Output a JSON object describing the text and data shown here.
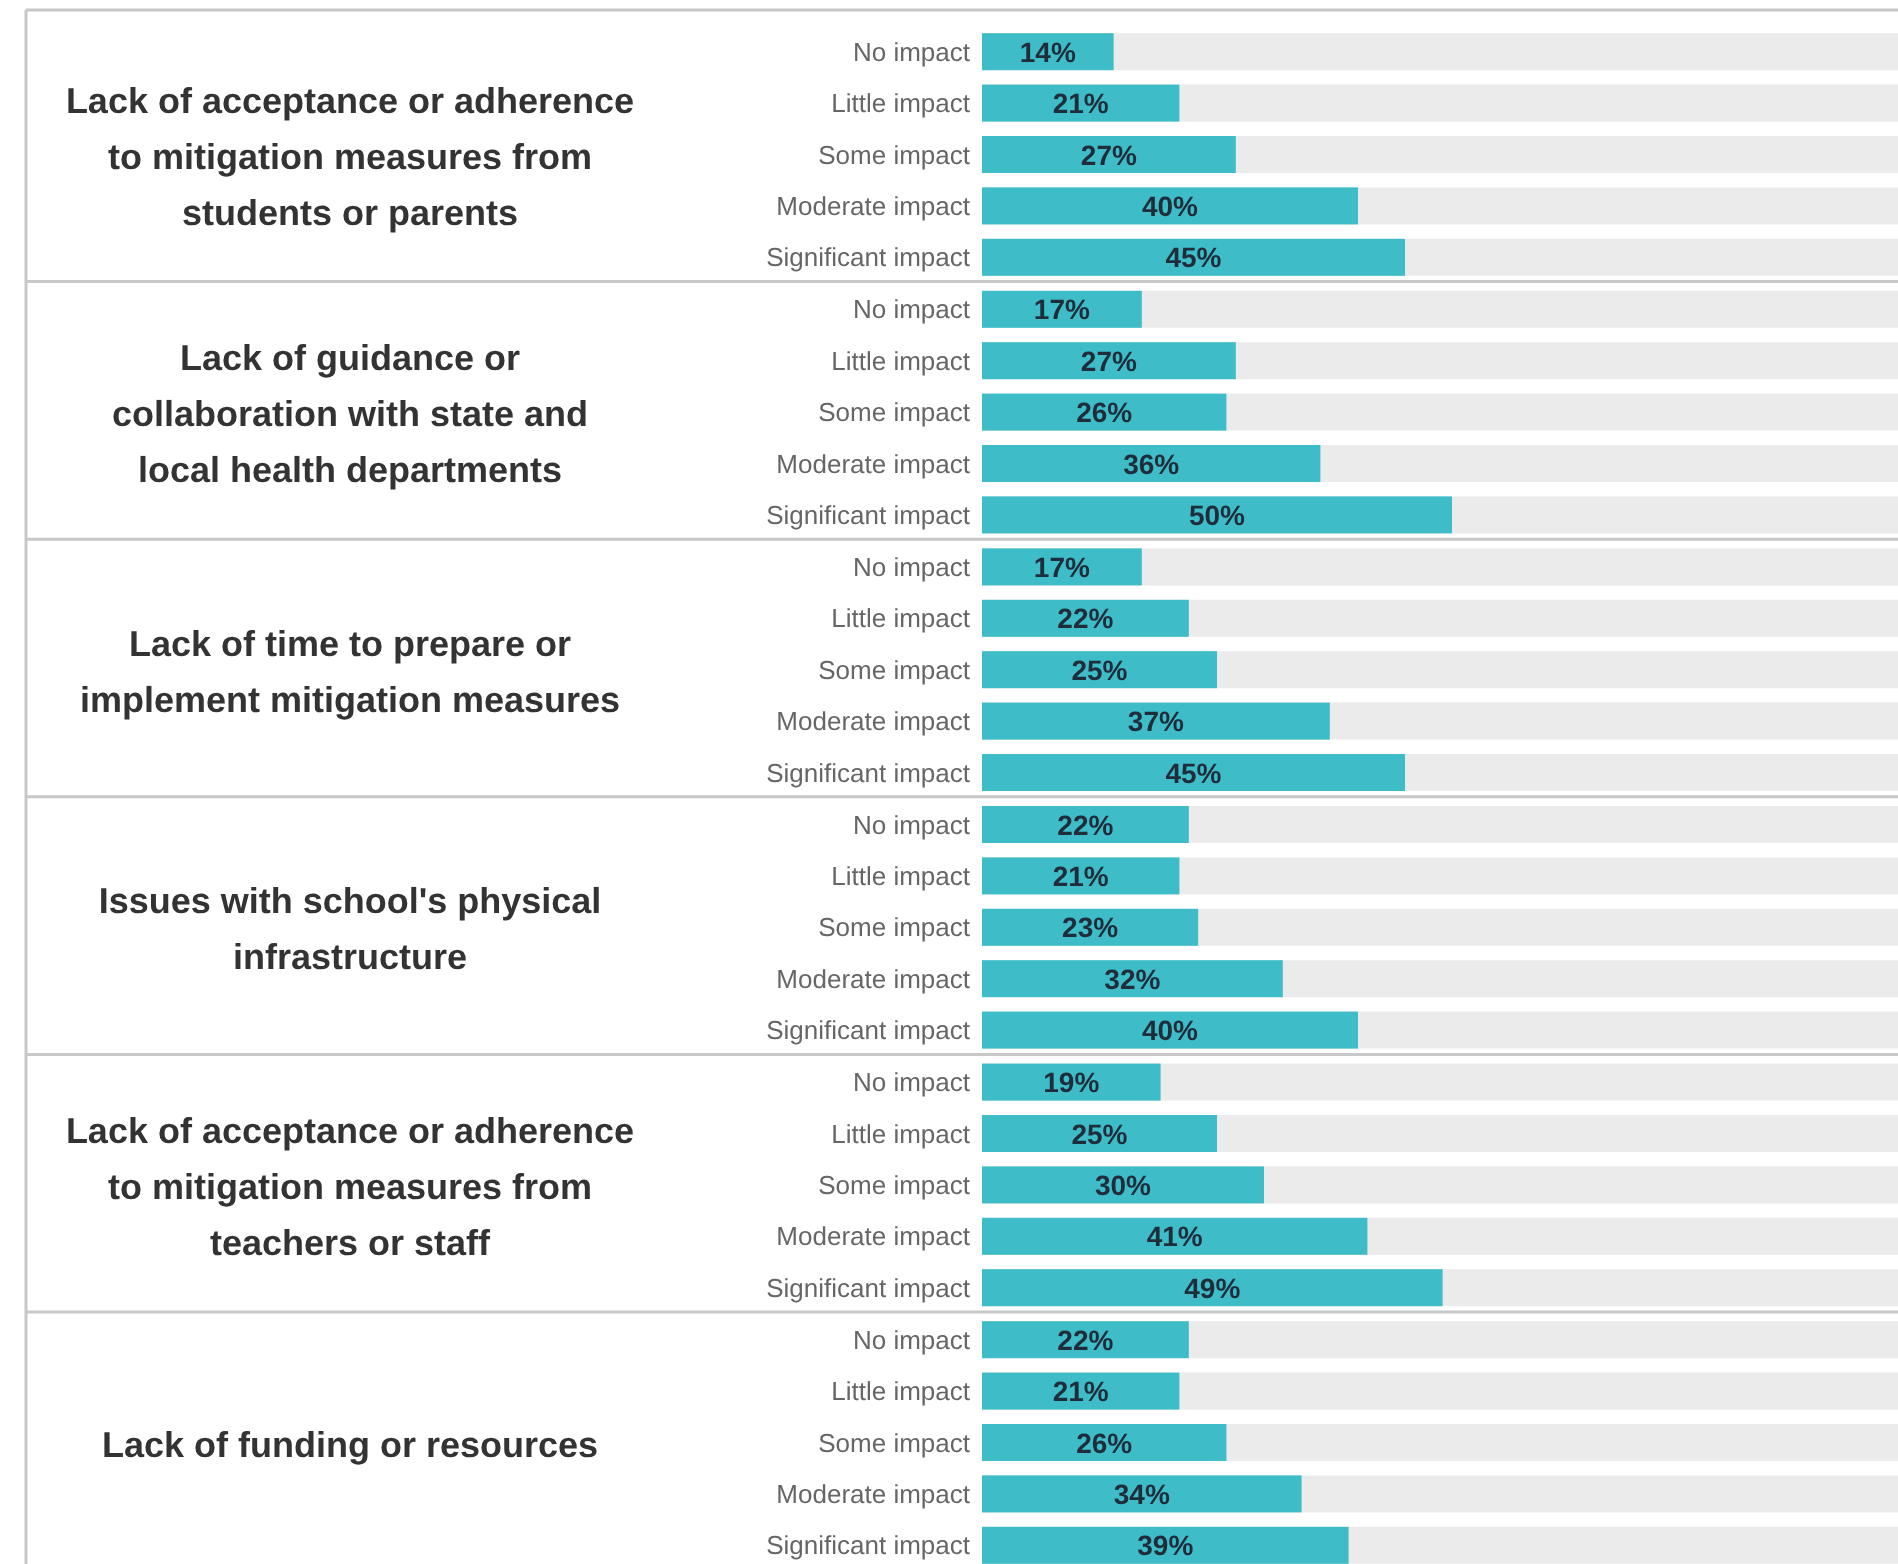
{
  "chart_data": [
    {
      "type": "bar",
      "orientation": "horizontal",
      "title": "Lack of acceptance or adherence to mitigation measures from students or parents",
      "categories": [
        "No impact",
        "Little impact",
        "Some impact",
        "Moderate impact",
        "Significant impact"
      ],
      "values": [
        14,
        21,
        27,
        40,
        45
      ],
      "value_labels": [
        "14%",
        "21%",
        "27%",
        "40%",
        "45%"
      ],
      "color": "#3ebcc8",
      "xlim": [
        0,
        100
      ],
      "tick_labels": "y"
    },
    {
      "type": "bar",
      "orientation": "horizontal",
      "title": "Lack of guidance or collaboration with state and local health departments",
      "categories": [
        "No impact",
        "Little impact",
        "Some impact",
        "Moderate impact",
        "Significant impact"
      ],
      "values": [
        17,
        27,
        26,
        36,
        50
      ],
      "value_labels": [
        "17%",
        "27%",
        "26%",
        "36%",
        "50%"
      ],
      "color": "#3ebcc8",
      "xlim": [
        0,
        100
      ],
      "tick_labels": "y"
    },
    {
      "type": "bar",
      "orientation": "horizontal",
      "title": "Lack of time to prepare or implement mitigation measures",
      "categories": [
        "No impact",
        "Little impact",
        "Some impact",
        "Moderate impact",
        "Significant impact"
      ],
      "values": [
        17,
        22,
        25,
        37,
        45
      ],
      "value_labels": [
        "17%",
        "22%",
        "25%",
        "37%",
        "45%"
      ],
      "color": "#3ebcc8",
      "xlim": [
        0,
        100
      ],
      "tick_labels": "y"
    },
    {
      "type": "bar",
      "orientation": "horizontal",
      "title": "Issues with school's physical infrastructure",
      "categories": [
        "No impact",
        "Little impact",
        "Some impact",
        "Moderate impact",
        "Significant impact"
      ],
      "values": [
        22,
        21,
        23,
        32,
        40
      ],
      "value_labels": [
        "22%",
        "21%",
        "23%",
        "32%",
        "40%"
      ],
      "color": "#3ebcc8",
      "xlim": [
        0,
        100
      ],
      "tick_labels": "y"
    },
    {
      "type": "bar",
      "orientation": "horizontal",
      "title": "Lack of acceptance or adherence to mitigation measures from teachers or staff",
      "categories": [
        "No impact",
        "Little impact",
        "Some impact",
        "Moderate impact",
        "Significant impact"
      ],
      "values": [
        19,
        25,
        30,
        41,
        49
      ],
      "value_labels": [
        "19%",
        "25%",
        "30%",
        "41%",
        "49%"
      ],
      "color": "#3ebcc8",
      "xlim": [
        0,
        100
      ],
      "tick_labels": "y"
    },
    {
      "type": "bar",
      "orientation": "horizontal",
      "title": "Lack of funding or resources",
      "categories": [
        "No impact",
        "Little impact",
        "Some impact",
        "Moderate impact",
        "Significant impact"
      ],
      "values": [
        22,
        21,
        26,
        34,
        39
      ],
      "value_labels": [
        "22%",
        "21%",
        "26%",
        "34%",
        "39%"
      ],
      "color": "#3ebcc8",
      "xlim": [
        0,
        100
      ],
      "tick_labels": "y"
    }
  ]
}
